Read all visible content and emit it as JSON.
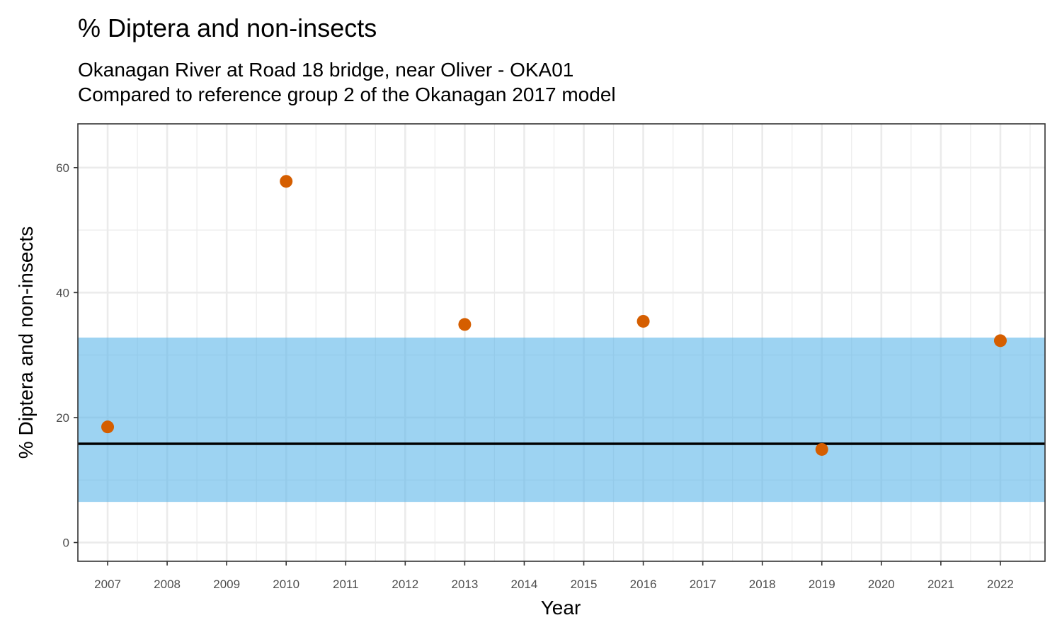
{
  "chart_data": {
    "type": "scatter",
    "title": "% Diptera and non-insects",
    "subtitle_lines": [
      "Okanagan River at Road 18 bridge, near Oliver - OKA01",
      "Compared to reference group 2 of the Okanagan 2017 model"
    ],
    "xlabel": "Year",
    "ylabel": "% Diptera and non-insects",
    "x_ticks": [
      2007,
      2008,
      2009,
      2010,
      2011,
      2012,
      2013,
      2014,
      2015,
      2016,
      2017,
      2018,
      2019,
      2020,
      2021,
      2022
    ],
    "y_ticks": [
      0,
      20,
      40,
      60
    ],
    "xlim": [
      2006.5,
      2022.75
    ],
    "ylim": [
      -3,
      67
    ],
    "grid": true,
    "series": [
      {
        "points": [
          {
            "x": 2007,
            "y": 18.5
          },
          {
            "x": 2010,
            "y": 57.8
          },
          {
            "x": 2013,
            "y": 34.9
          },
          {
            "x": 2016,
            "y": 35.4
          },
          {
            "x": 2019,
            "y": 14.9
          },
          {
            "x": 2022,
            "y": 32.3
          }
        ],
        "color": "#d55e00"
      }
    ],
    "reference_band": {
      "ymin": 6.5,
      "ymax": 32.8,
      "color": "#56b4e9"
    },
    "reference_line": {
      "y": 15.8,
      "color": "#000000"
    }
  }
}
